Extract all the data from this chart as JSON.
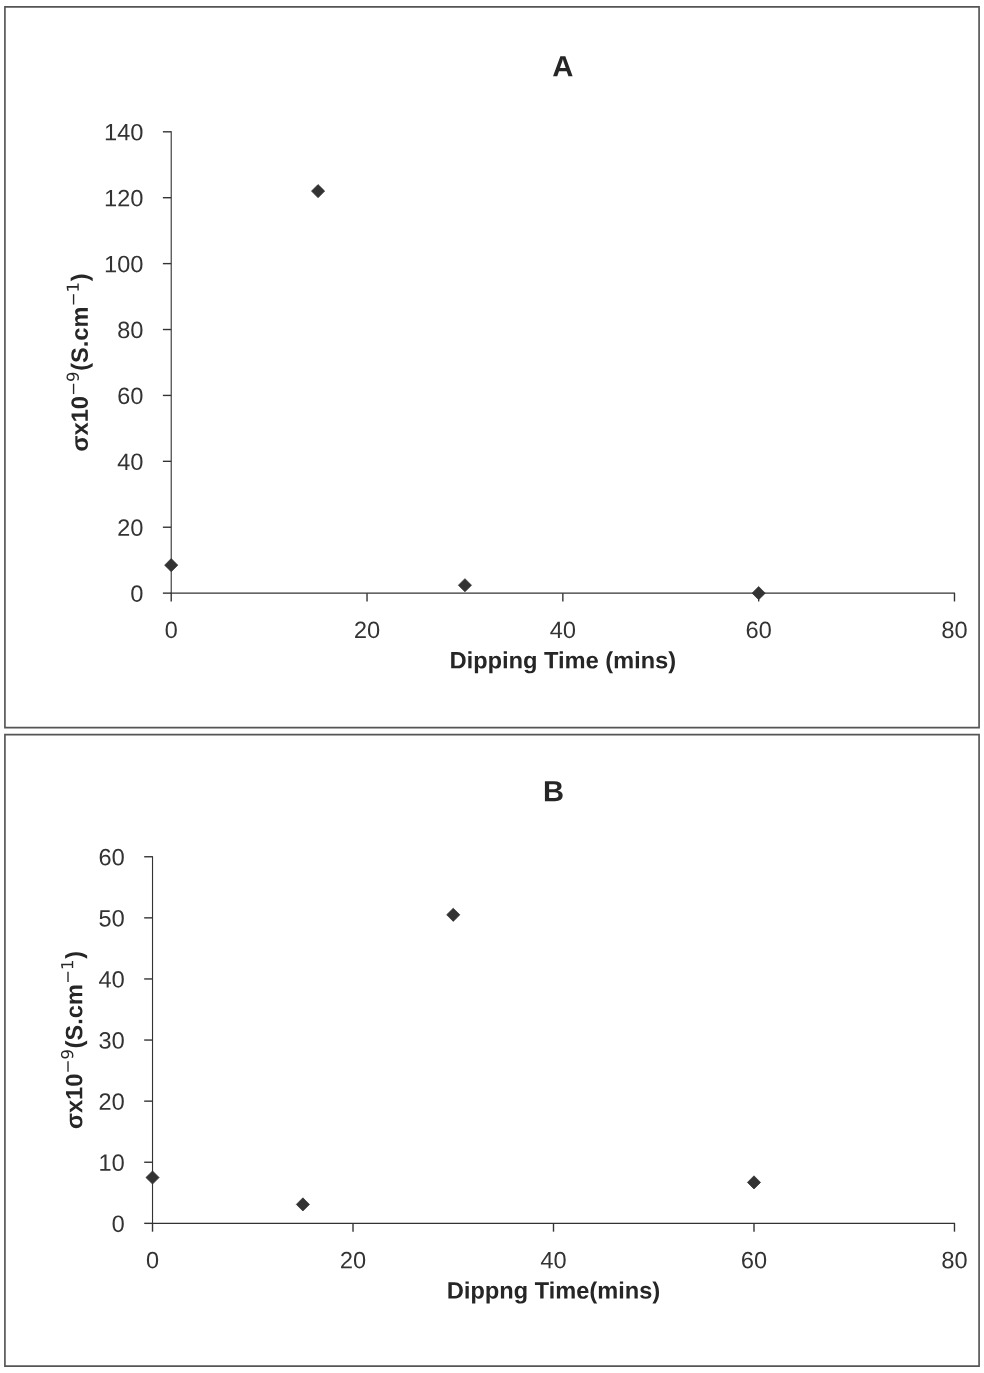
{
  "chart_data": [
    {
      "type": "scatter",
      "title": "A",
      "xlabel": "Dipping Time (mins)",
      "ylabel": "σx10$^{−9}$(S.cm$^{−1}$)",
      "x": [
        0,
        15,
        30,
        60
      ],
      "values": [
        8.5,
        122,
        2.4,
        0
      ],
      "color": "#333333",
      "marker": "diamond",
      "xlim": [
        0,
        80
      ],
      "xticks": [
        0,
        20,
        40,
        60,
        80
      ],
      "ylim": [
        0,
        140
      ],
      "yticks": [
        0,
        20,
        40,
        60,
        80,
        100,
        120,
        140
      ],
      "grid": false,
      "legend": false
    },
    {
      "type": "scatter",
      "title": "B",
      "xlabel": "Dippng Time(mins)",
      "ylabel": "σx10$^{−9}$(S.cm$^{−1}$)",
      "x": [
        0,
        15,
        30,
        60
      ],
      "values": [
        7.5,
        3.1,
        50.5,
        6.7
      ],
      "color": "#333333",
      "marker": "diamond",
      "xlim": [
        0,
        80
      ],
      "xticks": [
        0,
        20,
        40,
        60,
        80
      ],
      "ylim": [
        0,
        60
      ],
      "yticks": [
        0,
        10,
        20,
        30,
        40,
        50,
        60
      ],
      "grid": false,
      "legend": false
    }
  ]
}
